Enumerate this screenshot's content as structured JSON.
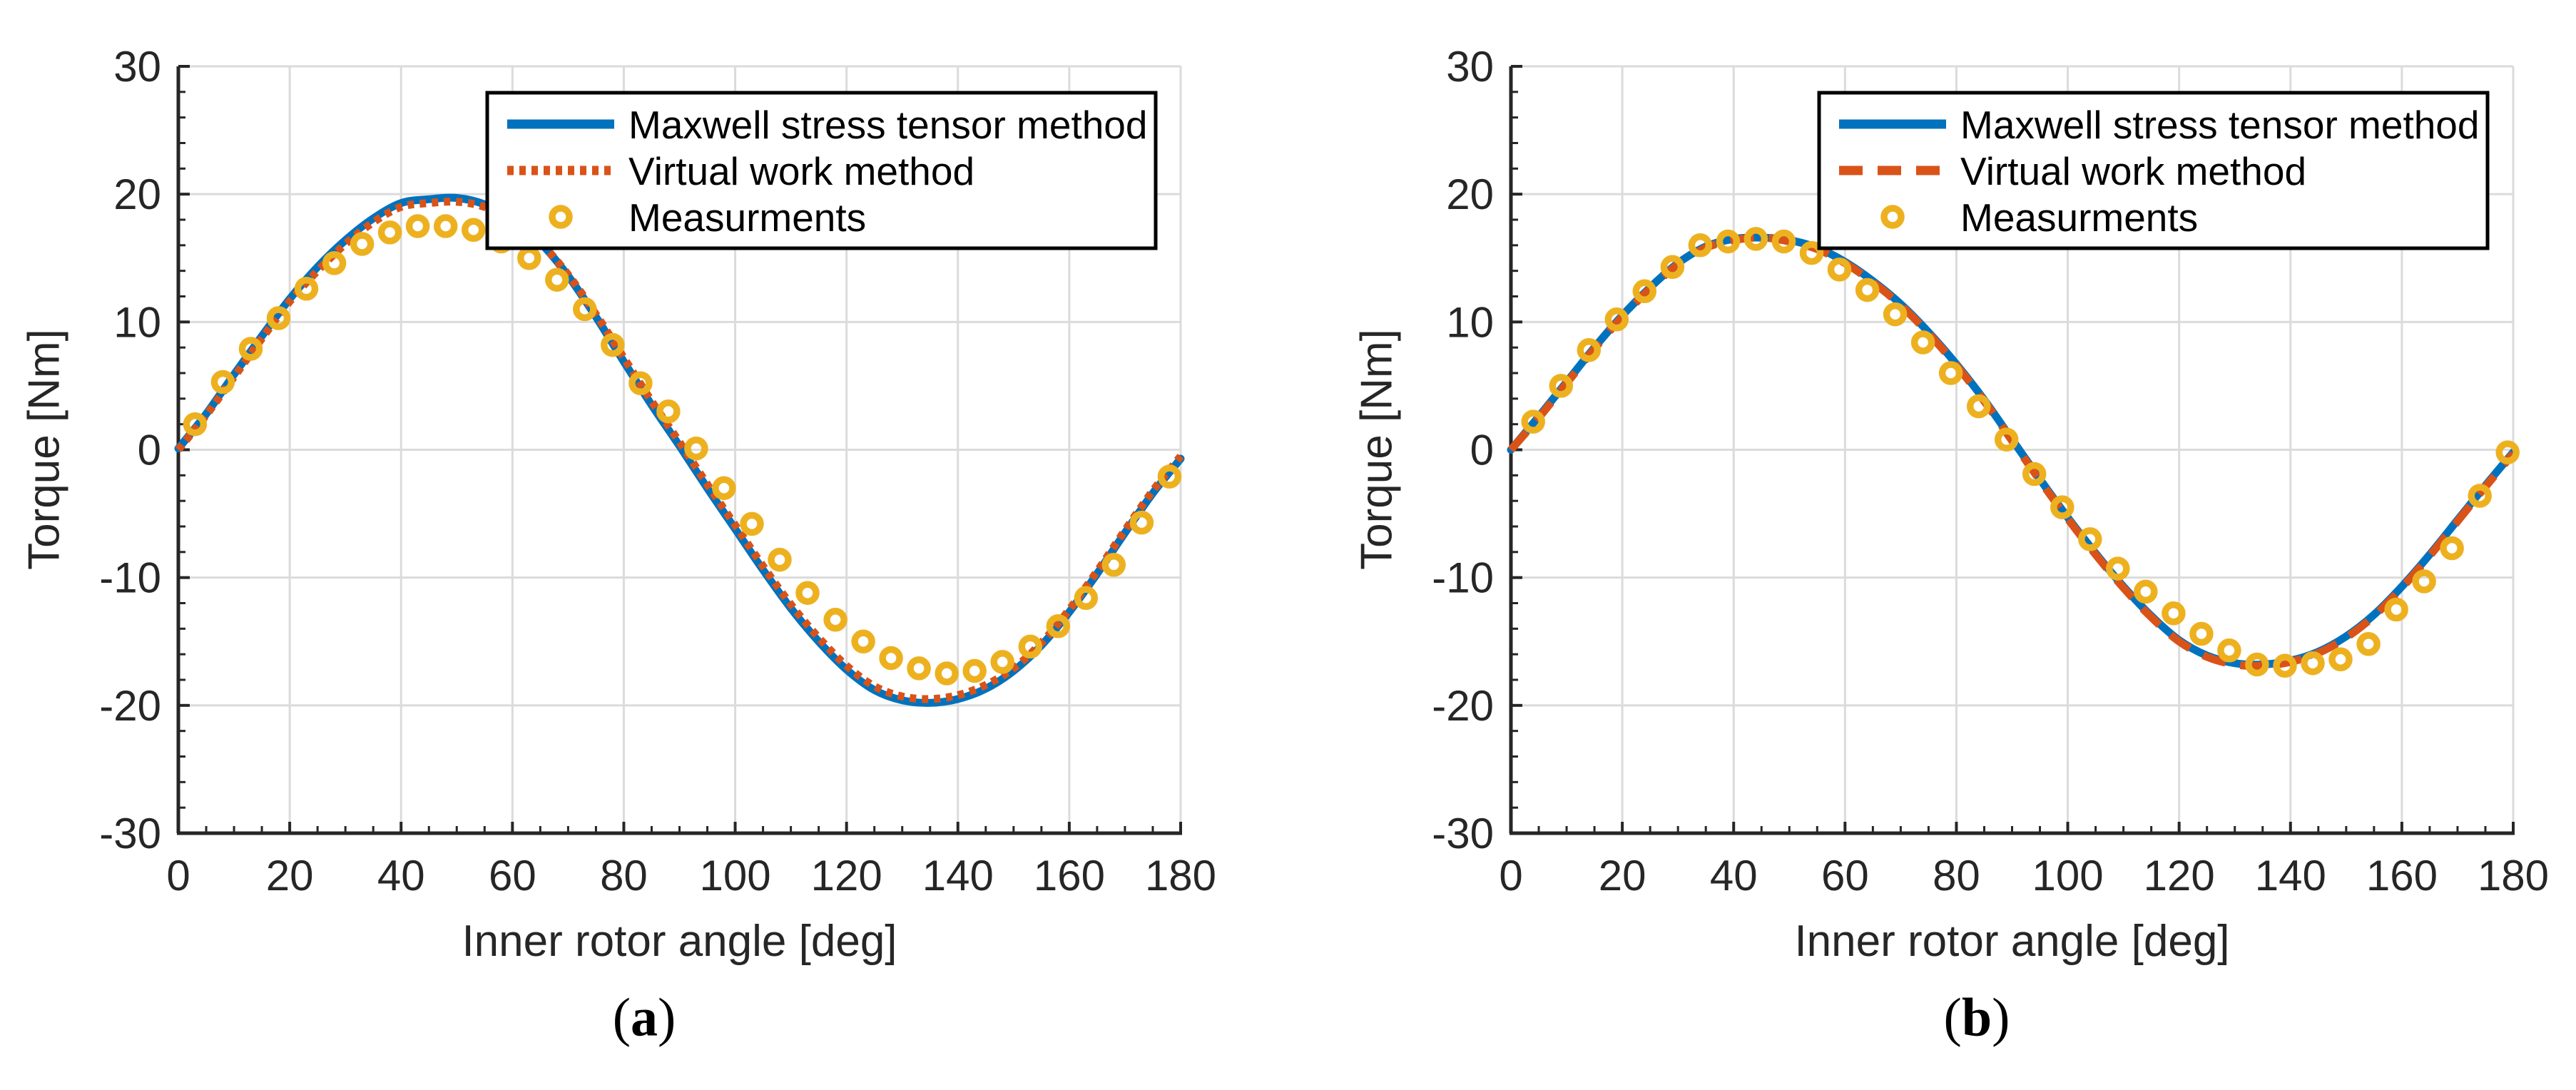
{
  "figure": {
    "background": "#ffffff",
    "colors": {
      "maxwell_blue": "#0072BD",
      "virtual_orange": "#D95319",
      "measurement_yellow": "#EDB120",
      "grid_gray": "#DBDBDB",
      "axis_dark": "#262626",
      "legend_border": "#000000"
    }
  },
  "chart_data": [
    {
      "type": "line",
      "panel": {
        "open": "(",
        "letter": "a",
        "close": ")"
      },
      "xlabel": "Inner rotor angle [deg]",
      "ylabel": "Torque [Nm]",
      "xlim": [
        0,
        180
      ],
      "ylim": [
        -30,
        30
      ],
      "xticks": [
        0,
        20,
        40,
        60,
        80,
        100,
        120,
        140,
        160,
        180
      ],
      "yticks": [
        -30,
        -20,
        -10,
        0,
        10,
        20,
        30
      ],
      "x_minor_step": 5,
      "y_minor_step": 2,
      "grid": true,
      "legend_position": "top-right-inside",
      "series": [
        {
          "name": "Maxwell stress tensor method",
          "kind": "line",
          "style": "solid",
          "color": "#0072BD",
          "x": [
            0,
            5,
            10,
            15,
            20,
            25,
            30,
            35,
            40,
            45,
            50,
            55,
            60,
            65,
            70,
            75,
            80,
            85,
            90,
            95,
            100,
            105,
            110,
            115,
            120,
            125,
            130,
            135,
            140,
            145,
            150,
            155,
            160,
            165,
            170,
            175,
            180
          ],
          "y": [
            0.1,
            2.8,
            5.9,
            8.9,
            11.8,
            14.3,
            16.4,
            18.1,
            19.3,
            19.6,
            19.7,
            19.2,
            18.0,
            16.2,
            13.6,
            10.4,
            6.9,
            3.5,
            0.3,
            -3.0,
            -6.2,
            -9.4,
            -12.4,
            -15.0,
            -17.2,
            -18.8,
            -19.6,
            -19.8,
            -19.5,
            -18.7,
            -17.3,
            -15.3,
            -12.7,
            -9.7,
            -6.5,
            -3.4,
            -0.7
          ]
        },
        {
          "name": "Virtual work method",
          "kind": "line",
          "style": "dotted",
          "color": "#D95319",
          "x": [
            0,
            5,
            10,
            15,
            20,
            25,
            30,
            35,
            40,
            45,
            50,
            55,
            60,
            65,
            70,
            75,
            80,
            85,
            90,
            95,
            100,
            105,
            110,
            115,
            120,
            125,
            130,
            135,
            140,
            145,
            150,
            155,
            160,
            165,
            170,
            175,
            180
          ],
          "y": [
            0.0,
            2.7,
            5.7,
            8.7,
            11.6,
            14.0,
            16.1,
            17.8,
            19.0,
            19.3,
            19.4,
            19.0,
            17.9,
            16.2,
            13.7,
            10.6,
            7.2,
            3.8,
            0.6,
            -2.7,
            -5.9,
            -9.1,
            -12.1,
            -14.7,
            -16.9,
            -18.5,
            -19.3,
            -19.5,
            -19.2,
            -18.4,
            -17.1,
            -15.1,
            -12.5,
            -9.5,
            -6.3,
            -3.2,
            -0.5
          ]
        },
        {
          "name": "Measurments",
          "kind": "scatter",
          "style": "open-circle",
          "color": "#EDB120",
          "x": [
            3,
            8,
            13,
            18,
            23,
            28,
            33,
            38,
            43,
            48,
            53,
            58,
            63,
            68,
            73,
            78,
            83,
            88,
            93,
            98,
            103,
            108,
            113,
            118,
            123,
            128,
            133,
            138,
            143,
            148,
            153,
            158,
            163,
            168,
            173,
            178
          ],
          "y": [
            2.0,
            5.3,
            7.9,
            10.3,
            12.6,
            14.6,
            16.1,
            17.0,
            17.5,
            17.5,
            17.2,
            16.3,
            15.0,
            13.3,
            11.0,
            8.2,
            5.2,
            3.0,
            0.1,
            -3.0,
            -5.8,
            -8.6,
            -11.2,
            -13.3,
            -15.0,
            -16.3,
            -17.1,
            -17.5,
            -17.3,
            -16.6,
            -15.4,
            -13.8,
            -11.6,
            -9.0,
            -5.7,
            -2.1
          ]
        }
      ]
    },
    {
      "type": "line",
      "panel": {
        "open": "(",
        "letter": "b",
        "close": ")"
      },
      "xlabel": "Inner rotor angle [deg]",
      "ylabel": "Torque [Nm]",
      "xlim": [
        0,
        180
      ],
      "ylim": [
        -30,
        30
      ],
      "xticks": [
        0,
        20,
        40,
        60,
        80,
        100,
        120,
        140,
        160,
        180
      ],
      "yticks": [
        -30,
        -20,
        -10,
        0,
        10,
        20,
        30
      ],
      "x_minor_step": 5,
      "y_minor_step": 2,
      "grid": true,
      "legend_position": "top-right-inside",
      "series": [
        {
          "name": "Maxwell stress tensor method",
          "kind": "line",
          "style": "solid",
          "color": "#0072BD",
          "x": [
            0,
            5,
            10,
            15,
            20,
            25,
            30,
            35,
            40,
            45,
            50,
            55,
            60,
            65,
            70,
            75,
            80,
            85,
            90,
            95,
            100,
            105,
            110,
            115,
            120,
            125,
            130,
            135,
            140,
            145,
            150,
            155,
            160,
            165,
            170,
            175,
            180
          ],
          "y": [
            0.0,
            2.6,
            5.3,
            8.0,
            10.5,
            12.7,
            14.6,
            15.9,
            16.5,
            16.6,
            16.4,
            15.8,
            14.7,
            13.2,
            11.4,
            9.2,
            6.7,
            3.9,
            0.8,
            -2.3,
            -5.3,
            -8.1,
            -10.7,
            -13.0,
            -14.9,
            -16.1,
            -16.7,
            -16.8,
            -16.5,
            -15.8,
            -14.6,
            -12.9,
            -10.7,
            -8.2,
            -5.5,
            -2.8,
            -0.2
          ]
        },
        {
          "name": "Virtual work method",
          "kind": "line",
          "style": "dashed",
          "color": "#D95319",
          "x": [
            0,
            5,
            10,
            15,
            20,
            25,
            30,
            35,
            40,
            45,
            50,
            55,
            60,
            65,
            70,
            75,
            80,
            85,
            90,
            95,
            100,
            105,
            110,
            115,
            120,
            125,
            130,
            135,
            140,
            145,
            150,
            155,
            160,
            165,
            170,
            175,
            180
          ],
          "y": [
            0.0,
            2.5,
            5.2,
            7.9,
            10.4,
            12.6,
            14.5,
            15.8,
            16.4,
            16.6,
            16.3,
            15.7,
            14.6,
            13.1,
            11.3,
            9.1,
            6.6,
            3.8,
            0.7,
            -2.4,
            -5.4,
            -8.2,
            -10.8,
            -13.1,
            -15.0,
            -16.2,
            -16.8,
            -16.9,
            -16.6,
            -15.9,
            -14.7,
            -13.0,
            -10.8,
            -8.3,
            -5.6,
            -2.9,
            -0.3
          ]
        },
        {
          "name": "Measurments",
          "kind": "scatter",
          "style": "open-circle",
          "color": "#EDB120",
          "x": [
            4,
            9,
            14,
            19,
            24,
            29,
            34,
            39,
            44,
            49,
            54,
            59,
            64,
            69,
            74,
            79,
            84,
            89,
            94,
            99,
            104,
            109,
            114,
            119,
            124,
            129,
            134,
            139,
            144,
            149,
            154,
            159,
            164,
            169,
            174,
            179
          ],
          "y": [
            2.2,
            5.0,
            7.8,
            10.2,
            12.4,
            14.3,
            16.0,
            16.3,
            16.5,
            16.3,
            15.4,
            14.1,
            12.5,
            10.6,
            8.4,
            6.0,
            3.4,
            0.8,
            -1.9,
            -4.5,
            -7.0,
            -9.3,
            -11.1,
            -12.8,
            -14.4,
            -15.7,
            -16.8,
            -16.9,
            -16.7,
            -16.4,
            -15.2,
            -12.5,
            -10.3,
            -7.7,
            -3.6,
            -0.2
          ]
        }
      ]
    }
  ]
}
